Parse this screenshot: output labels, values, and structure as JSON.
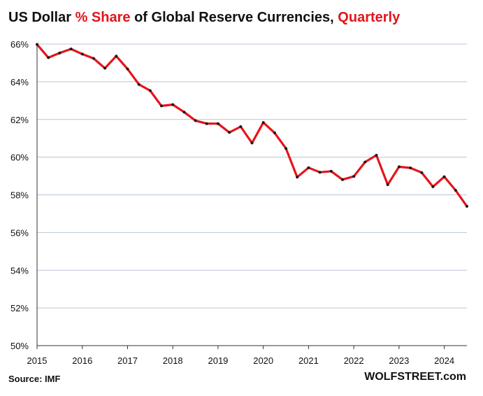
{
  "chart_data": {
    "type": "line",
    "title": {
      "part1": "US Dollar ",
      "part2": "% Share",
      "part3": " of Global Reserve Currencies, ",
      "part4": "Quarterly"
    },
    "source": "Source: IMF",
    "brand": "WOLFSTREET.com",
    "xlabel": "",
    "ylabel": "",
    "xlim": [
      2015,
      2024.5
    ],
    "ylim": [
      50,
      66
    ],
    "x_ticks": [
      "2015",
      "2016",
      "2017",
      "2018",
      "2019",
      "2020",
      "2021",
      "2022",
      "2023",
      "2024"
    ],
    "y_ticks": [
      "50%",
      "52%",
      "54%",
      "56%",
      "58%",
      "60%",
      "62%",
      "64%",
      "66%"
    ],
    "grid": true,
    "legend": "none",
    "colors": {
      "line": "#e4141b",
      "marker": "#1a1a1a",
      "grid": "#b9c4d8",
      "accent_text": "#e4141b"
    },
    "series": [
      {
        "x": [
          "2015-Q1",
          "2015-Q2",
          "2015-Q3",
          "2015-Q4",
          "2016-Q1",
          "2016-Q2",
          "2016-Q3",
          "2016-Q4",
          "2017-Q1",
          "2017-Q2",
          "2017-Q3",
          "2017-Q4",
          "2018-Q1",
          "2018-Q2",
          "2018-Q3",
          "2018-Q4",
          "2019-Q1",
          "2019-Q2",
          "2019-Q3",
          "2019-Q4",
          "2020-Q1",
          "2020-Q2",
          "2020-Q3",
          "2020-Q4",
          "2021-Q1",
          "2021-Q2",
          "2021-Q3",
          "2021-Q4",
          "2022-Q1",
          "2022-Q2",
          "2022-Q3",
          "2022-Q4",
          "2023-Q1",
          "2023-Q2",
          "2023-Q3",
          "2023-Q4",
          "2024-Q1",
          "2024-Q2",
          "2024-Q3"
        ],
        "values": [
          65.98,
          65.28,
          65.53,
          65.74,
          65.47,
          65.24,
          64.72,
          65.36,
          64.68,
          63.86,
          63.53,
          62.72,
          62.79,
          62.39,
          61.94,
          61.78,
          61.78,
          61.31,
          61.62,
          60.75,
          61.84,
          61.29,
          60.46,
          58.94,
          59.44,
          59.2,
          59.25,
          58.81,
          58.98,
          59.74,
          60.1,
          58.54,
          59.49,
          59.43,
          59.18,
          58.43,
          58.96,
          58.24,
          57.39
        ]
      }
    ]
  }
}
